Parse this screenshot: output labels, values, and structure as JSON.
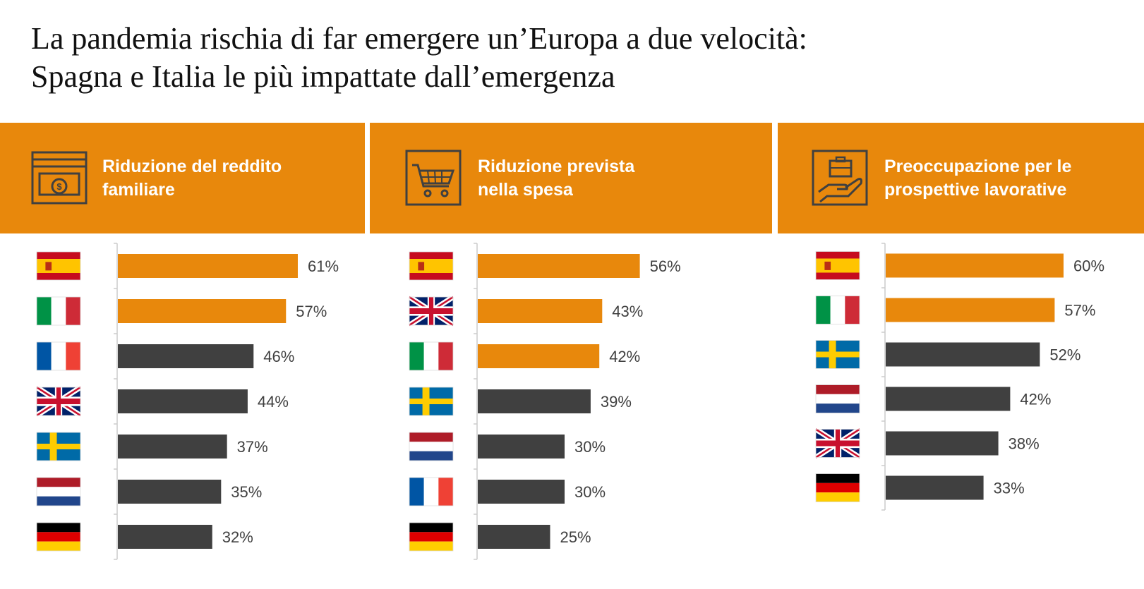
{
  "title": {
    "line1": "La pandemia rischia di far emergere un’Europa a due velocità:",
    "line2": "Spagna e Italia le più impattate dall’emergenza"
  },
  "colors": {
    "highlight": "#e8880c",
    "default": "#404040",
    "header_bg": "#e8880c"
  },
  "panels": [
    {
      "header_line1": "Riduzione del reddito",
      "header_line2": "familiare",
      "icon": "money-bill-icon"
    },
    {
      "header_line1": "Riduzione prevista",
      "header_line2": "nella spesa",
      "icon": "shopping-cart-icon"
    },
    {
      "header_line1": "Preoccupazione per le",
      "header_line2": "prospettive lavorative",
      "icon": "briefcase-hand-icon"
    }
  ],
  "chart_data": [
    {
      "type": "bar",
      "orientation": "horizontal",
      "categories": [
        "spain-flag-icon",
        "italy-flag-icon",
        "france-flag-icon",
        "uk-flag-icon",
        "sweden-flag-icon",
        "netherlands-flag-icon",
        "germany-flag-icon"
      ],
      "values": [
        61,
        57,
        46,
        44,
        37,
        35,
        32
      ],
      "labels": [
        "61%",
        "57%",
        "46%",
        "44%",
        "37%",
        "35%",
        "32%"
      ],
      "highlight": [
        true,
        true,
        false,
        false,
        false,
        false,
        false
      ],
      "xlim": [
        0,
        100
      ]
    },
    {
      "type": "bar",
      "orientation": "horizontal",
      "categories": [
        "spain-flag-icon",
        "uk-flag-icon",
        "italy-flag-icon",
        "sweden-flag-icon",
        "netherlands-flag-icon",
        "france-flag-icon",
        "germany-flag-icon"
      ],
      "values": [
        56,
        43,
        42,
        39,
        30,
        30,
        25
      ],
      "labels": [
        "56%",
        "43%",
        "42%",
        "39%",
        "30%",
        "30%",
        "25%"
      ],
      "highlight": [
        true,
        true,
        true,
        false,
        false,
        false,
        false
      ],
      "xlim": [
        0,
        100
      ]
    },
    {
      "type": "bar",
      "orientation": "horizontal",
      "categories": [
        "spain-flag-icon",
        "italy-flag-icon",
        "sweden-flag-icon",
        "netherlands-flag-icon",
        "uk-flag-icon",
        "germany-flag-icon"
      ],
      "values": [
        60,
        57,
        52,
        42,
        38,
        33
      ],
      "labels": [
        "60%",
        "57%",
        "52%",
        "42%",
        "38%",
        "33%"
      ],
      "highlight": [
        true,
        true,
        false,
        false,
        false,
        false
      ],
      "xlim": [
        0,
        100
      ]
    }
  ]
}
